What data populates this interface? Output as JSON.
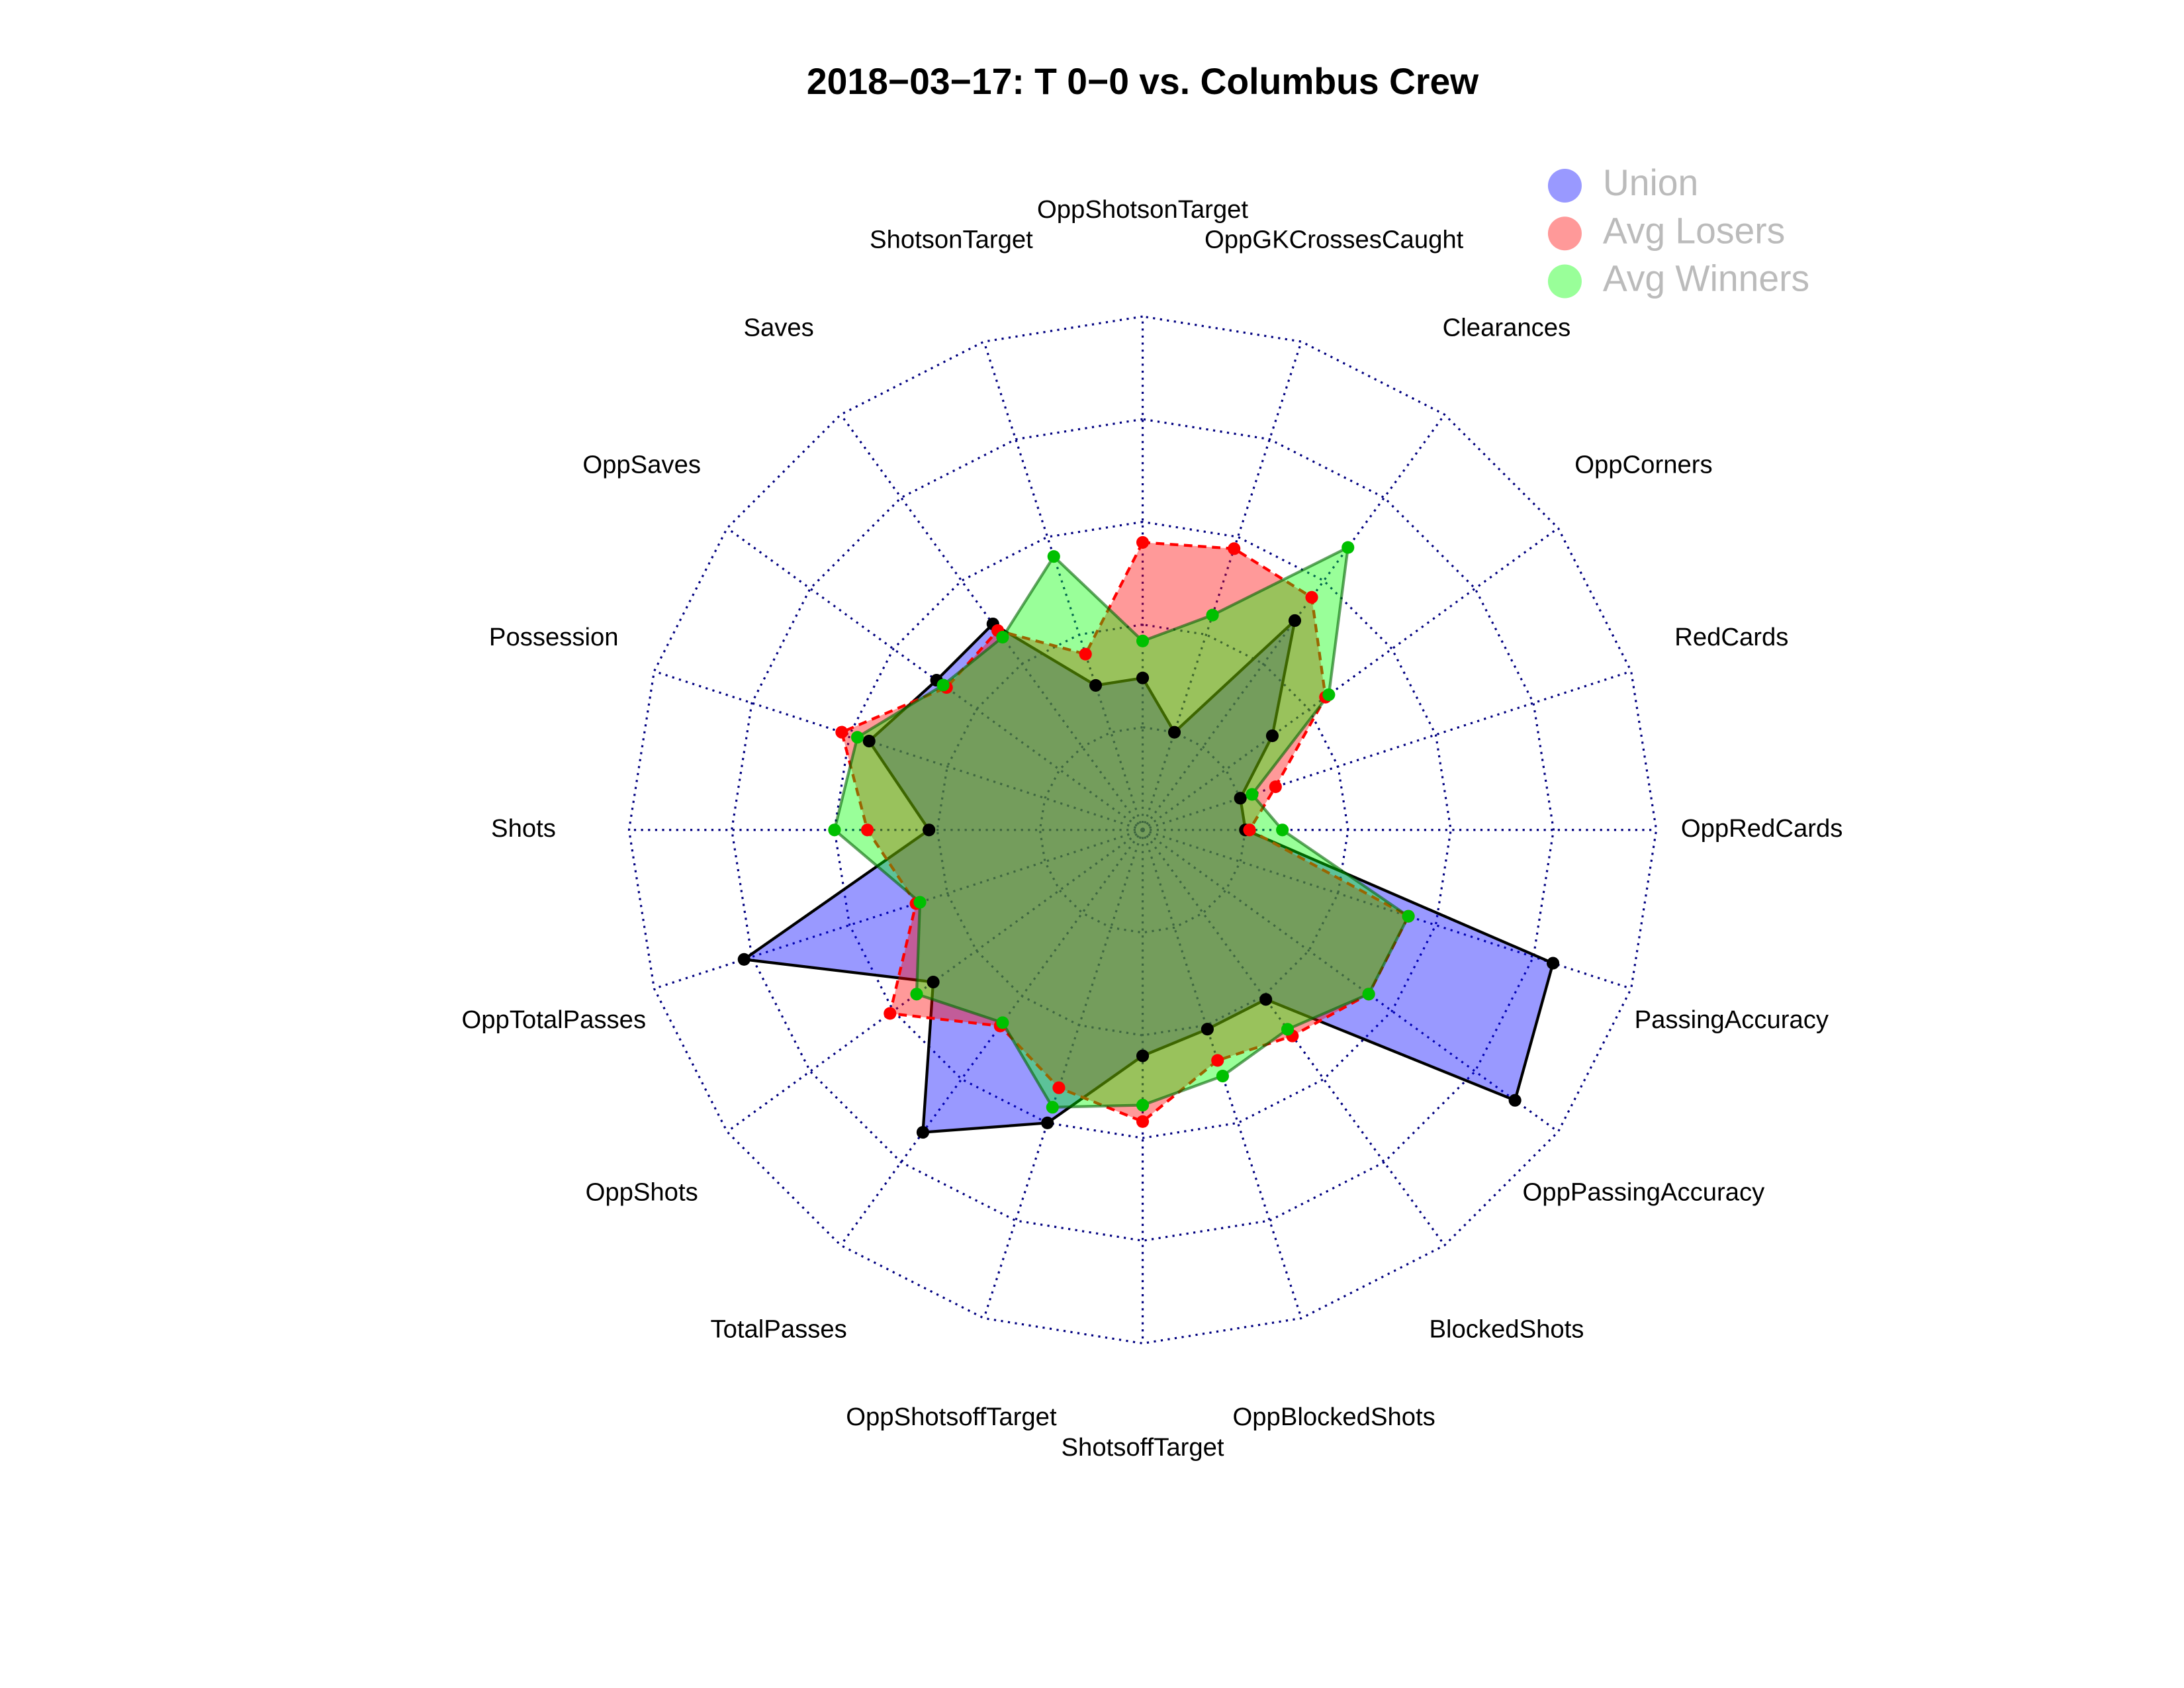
{
  "chart_data": {
    "type": "radar",
    "title": "2018−03−17:  T 0−0   vs. Columbus Crew",
    "categories": [
      "OppShotsonTarget",
      "ShotsonTarget",
      "Saves",
      "OppSaves",
      "Possession",
      "Shots",
      "OppTotalPasses",
      "OppShots",
      "TotalPasses",
      "OppShotsoffTarget",
      "ShotsoffTarget",
      "OppBlockedShots",
      "BlockedShots",
      "OppPassingAccuracy",
      "PassingAccuracy",
      "OppRedCards",
      "RedCards",
      "OppCorners",
      "Clearances",
      "OppGKCrossesCaught"
    ],
    "ylim": [
      0,
      1
    ],
    "yticks": [
      0,
      0.25,
      0.5,
      0.75,
      1
    ],
    "grid": true,
    "legend": "top-right",
    "series": [
      {
        "name": "Union",
        "color": "rgba(0,0,255,0.4)",
        "line_color": "#000000",
        "point_color": "#000000",
        "dashed": false,
        "values": [
          0.12,
          0.12,
          0.37,
          0.37,
          0.45,
          0.27,
          0.77,
          0.38,
          0.66,
          0.5,
          0.3,
          0.26,
          0.26,
          0.87,
          0.8,
          0,
          0,
          0.14,
          0.38,
          0
        ]
      },
      {
        "name": "Avg Losers",
        "color": "rgba(255,0,0,0.4)",
        "line_color": "#ff0000",
        "point_color": "#ff0000",
        "dashed": true,
        "values": [
          0.45,
          0.2,
          0.35,
          0.34,
          0.52,
          0.42,
          0.33,
          0.51,
          0.34,
          0.41,
          0.46,
          0.34,
          0.37,
          0.43,
          0.43,
          0.01,
          0.09,
          0.3,
          0.45,
          0.47
        ]
      },
      {
        "name": "Avg Winners",
        "color": "rgba(0,255,0,0.4)",
        "line_color": "rgba(0,100,0,0.6)",
        "point_color": "#00c000",
        "dashed": false,
        "values": [
          0.21,
          0.45,
          0.33,
          0.35,
          0.48,
          0.5,
          0.32,
          0.43,
          0.33,
          0.46,
          0.42,
          0.38,
          0.35,
          0.43,
          0.43,
          0.09,
          0.03,
          0.31,
          0.6,
          0.3
        ]
      }
    ]
  }
}
